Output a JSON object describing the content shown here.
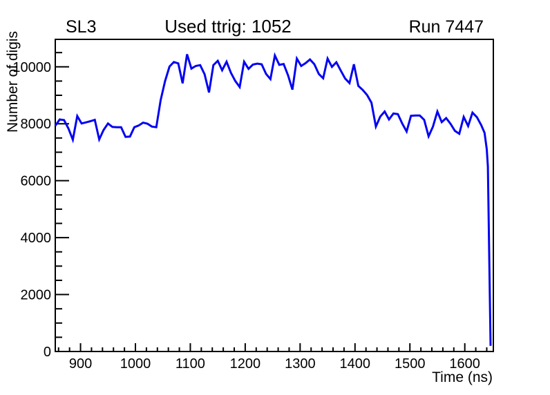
{
  "chart_data": {
    "type": "line",
    "title": "Used ttrig: 1052",
    "top_left_label": "SL3",
    "top_right_label": "Run 7447",
    "xlabel": "Time (ns)",
    "ylabel": "Number of digis",
    "xlim": [
      854,
      1652
    ],
    "ylim": [
      0,
      10965
    ],
    "x_major_ticks": [
      900,
      1000,
      1100,
      1200,
      1300,
      1400,
      1500,
      1600
    ],
    "x_minor_step": 20,
    "y_major_ticks": [
      0,
      2000,
      4000,
      6000,
      8000,
      10000
    ],
    "y_minor_step": 500,
    "grid": false,
    "legend_position": "none",
    "line_color": "#0202f2",
    "frame_color": "#000000",
    "background_color": "#ffffff",
    "series": [
      {
        "name": "number-of-digis-vs-time",
        "points": [
          [
            854,
            7930
          ],
          [
            862,
            8150
          ],
          [
            870,
            8130
          ],
          [
            878,
            7830
          ],
          [
            886,
            7440
          ],
          [
            894,
            8270
          ],
          [
            902,
            8010
          ],
          [
            910,
            8050
          ],
          [
            918,
            8090
          ],
          [
            926,
            8140
          ],
          [
            934,
            7450
          ],
          [
            942,
            7780
          ],
          [
            950,
            8010
          ],
          [
            958,
            7890
          ],
          [
            966,
            7880
          ],
          [
            974,
            7880
          ],
          [
            982,
            7540
          ],
          [
            990,
            7550
          ],
          [
            998,
            7880
          ],
          [
            1006,
            7940
          ],
          [
            1014,
            8040
          ],
          [
            1022,
            8000
          ],
          [
            1030,
            7900
          ],
          [
            1038,
            7880
          ],
          [
            1046,
            8830
          ],
          [
            1054,
            9500
          ],
          [
            1062,
            10010
          ],
          [
            1070,
            10170
          ],
          [
            1078,
            10120
          ],
          [
            1086,
            9420
          ],
          [
            1094,
            10440
          ],
          [
            1102,
            9940
          ],
          [
            1110,
            10030
          ],
          [
            1118,
            10060
          ],
          [
            1126,
            9740
          ],
          [
            1134,
            9100
          ],
          [
            1142,
            10060
          ],
          [
            1150,
            10210
          ],
          [
            1158,
            9880
          ],
          [
            1166,
            10180
          ],
          [
            1174,
            9790
          ],
          [
            1182,
            9500
          ],
          [
            1190,
            9290
          ],
          [
            1198,
            10180
          ],
          [
            1206,
            9930
          ],
          [
            1214,
            10080
          ],
          [
            1222,
            10110
          ],
          [
            1230,
            10090
          ],
          [
            1238,
            9750
          ],
          [
            1246,
            9570
          ],
          [
            1254,
            10400
          ],
          [
            1262,
            10070
          ],
          [
            1270,
            10100
          ],
          [
            1278,
            9700
          ],
          [
            1286,
            9200
          ],
          [
            1294,
            10290
          ],
          [
            1302,
            10030
          ],
          [
            1310,
            10130
          ],
          [
            1318,
            10260
          ],
          [
            1326,
            10090
          ],
          [
            1334,
            9750
          ],
          [
            1342,
            9600
          ],
          [
            1350,
            10290
          ],
          [
            1358,
            10000
          ],
          [
            1366,
            10160
          ],
          [
            1374,
            9870
          ],
          [
            1382,
            9590
          ],
          [
            1390,
            9430
          ],
          [
            1398,
            10090
          ],
          [
            1406,
            9330
          ],
          [
            1414,
            9190
          ],
          [
            1422,
            9010
          ],
          [
            1430,
            8740
          ],
          [
            1438,
            7900
          ],
          [
            1446,
            8250
          ],
          [
            1454,
            8430
          ],
          [
            1462,
            8150
          ],
          [
            1470,
            8360
          ],
          [
            1478,
            8340
          ],
          [
            1486,
            8010
          ],
          [
            1494,
            7730
          ],
          [
            1502,
            8280
          ],
          [
            1510,
            8290
          ],
          [
            1518,
            8290
          ],
          [
            1526,
            8140
          ],
          [
            1534,
            7560
          ],
          [
            1542,
            7900
          ],
          [
            1550,
            8430
          ],
          [
            1558,
            8060
          ],
          [
            1566,
            8200
          ],
          [
            1574,
            8000
          ],
          [
            1582,
            7750
          ],
          [
            1590,
            7650
          ],
          [
            1598,
            8240
          ],
          [
            1606,
            7920
          ],
          [
            1614,
            8390
          ],
          [
            1622,
            8230
          ],
          [
            1630,
            7950
          ],
          [
            1636,
            7680
          ],
          [
            1640,
            7100
          ],
          [
            1642,
            6500
          ],
          [
            1647,
            200
          ]
        ]
      }
    ]
  }
}
